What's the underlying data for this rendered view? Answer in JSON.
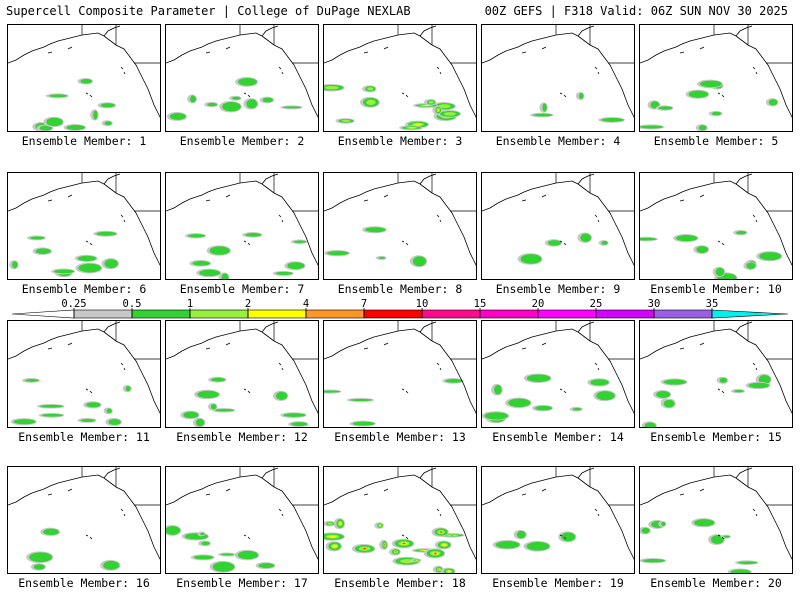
{
  "header": {
    "left": "Supercell Composite Parameter | College of DuPage NEXLAB",
    "right": "00Z GEFS | F318 Valid: 06Z SUN NOV 30 2025"
  },
  "label_prefix": "Ensemble Member: ",
  "members": [
    {
      "number": "1",
      "label": "Ensemble Member: 1",
      "intensity": "low"
    },
    {
      "number": "2",
      "label": "Ensemble Member: 2",
      "intensity": "low"
    },
    {
      "number": "3",
      "label": "Ensemble Member: 3",
      "intensity": "moderate"
    },
    {
      "number": "4",
      "label": "Ensemble Member: 4",
      "intensity": "minimal"
    },
    {
      "number": "5",
      "label": "Ensemble Member: 5",
      "intensity": "low"
    },
    {
      "number": "6",
      "label": "Ensemble Member: 6",
      "intensity": "low"
    },
    {
      "number": "7",
      "label": "Ensemble Member: 7",
      "intensity": "low"
    },
    {
      "number": "8",
      "label": "Ensemble Member: 8",
      "intensity": "minimal"
    },
    {
      "number": "9",
      "label": "Ensemble Member: 9",
      "intensity": "minimal"
    },
    {
      "number": "10",
      "label": "Ensemble Member: 10",
      "intensity": "low"
    },
    {
      "number": "11",
      "label": "Ensemble Member: 11",
      "intensity": "low"
    },
    {
      "number": "12",
      "label": "Ensemble Member: 12",
      "intensity": "low"
    },
    {
      "number": "13",
      "label": "Ensemble Member: 13",
      "intensity": "minimal"
    },
    {
      "number": "14",
      "label": "Ensemble Member: 14",
      "intensity": "low"
    },
    {
      "number": "15",
      "label": "Ensemble Member: 15",
      "intensity": "low"
    },
    {
      "number": "16",
      "label": "Ensemble Member: 16",
      "intensity": "minimal"
    },
    {
      "number": "17",
      "label": "Ensemble Member: 17",
      "intensity": "low"
    },
    {
      "number": "18",
      "label": "Ensemble Member: 18",
      "intensity": "high"
    },
    {
      "number": "19",
      "label": "Ensemble Member: 19",
      "intensity": "minimal"
    },
    {
      "number": "20",
      "label": "Ensemble Member: 20",
      "intensity": "low"
    }
  ],
  "colorbar": {
    "ticks": [
      "0.25",
      "0.5",
      "1",
      "2",
      "4",
      "7",
      "10",
      "15",
      "20",
      "25",
      "30",
      "35"
    ],
    "colors": [
      "#c8c8c8",
      "#32d232",
      "#96f03c",
      "#ffff00",
      "#ff9628",
      "#ff0000",
      "#ff0a8c",
      "#ff00c8",
      "#ff00ff",
      "#d200ff",
      "#9b5fe6",
      "#00f0f0"
    ]
  }
}
